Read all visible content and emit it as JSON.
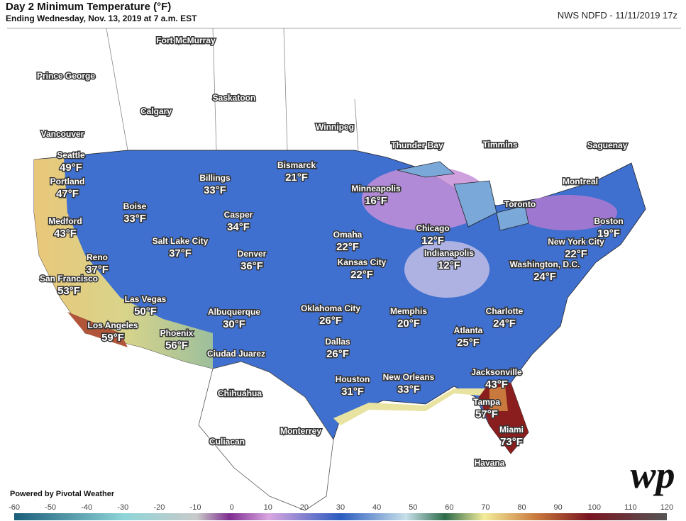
{
  "header": {
    "title": "Day 2 Minimum Temperature (°F)",
    "subtitle": "Ending Wednesday, Nov. 13, 2019 at 7 a.m. EST",
    "source": "NWS NDFD - 11/11/2019 17z"
  },
  "cities": [
    {
      "name": "Seattle",
      "temp": "49°F"
    },
    {
      "name": "Portland",
      "temp": "47°F"
    },
    {
      "name": "Boise",
      "temp": "33°F"
    },
    {
      "name": "Medford",
      "temp": "43°F"
    },
    {
      "name": "Billings",
      "temp": "33°F"
    },
    {
      "name": "Bismarck",
      "temp": "21°F"
    },
    {
      "name": "Casper",
      "temp": "34°F"
    },
    {
      "name": "Minneapolis",
      "temp": "16°F"
    },
    {
      "name": "Reno",
      "temp": "37°F"
    },
    {
      "name": "Salt Lake City",
      "temp": "37°F"
    },
    {
      "name": "Denver",
      "temp": "36°F"
    },
    {
      "name": "Omaha",
      "temp": "22°F"
    },
    {
      "name": "Chicago",
      "temp": "12°F"
    },
    {
      "name": "Indianapolis",
      "temp": "12°F"
    },
    {
      "name": "Kansas City",
      "temp": "22°F"
    },
    {
      "name": "San Francisco",
      "temp": "53°F"
    },
    {
      "name": "Las Vegas",
      "temp": "50°F"
    },
    {
      "name": "Boston",
      "temp": "19°F"
    },
    {
      "name": "New York City",
      "temp": "22°F"
    },
    {
      "name": "Washington, D.C.",
      "temp": "24°F"
    },
    {
      "name": "Oklahoma City",
      "temp": "26°F"
    },
    {
      "name": "Memphis",
      "temp": "20°F"
    },
    {
      "name": "Charlotte",
      "temp": "24°F"
    },
    {
      "name": "Albuquerque",
      "temp": "30°F"
    },
    {
      "name": "Los Angeles",
      "temp": "59°F"
    },
    {
      "name": "Phoenix",
      "temp": "56°F"
    },
    {
      "name": "Atlanta",
      "temp": "25°F"
    },
    {
      "name": "Dallas",
      "temp": "26°F"
    },
    {
      "name": "Houston",
      "temp": "31°F"
    },
    {
      "name": "New Orleans",
      "temp": "33°F"
    },
    {
      "name": "Jacksonville",
      "temp": "43°F"
    },
    {
      "name": "Tampa",
      "temp": "57°F"
    },
    {
      "name": "Miami",
      "temp": "73°F"
    }
  ],
  "places": [
    "Fort McMurray",
    "Prince George",
    "Saskatoon",
    "Calgary",
    "Vancouver",
    "Winnipeg",
    "Thunder Bay",
    "Timmins",
    "Saguenay",
    "Montreal",
    "Toronto",
    "Ciudad Juarez",
    "Chihuahua",
    "Monterrey",
    "Culiacan",
    "Havana"
  ],
  "footer": {
    "credit": "Powered by Pivotal Weather",
    "logo": "wp"
  },
  "colorbar": {
    "lim": [
      -60,
      120
    ],
    "ticks": [
      -60,
      -50,
      -40,
      -30,
      -20,
      -10,
      0,
      10,
      20,
      30,
      40,
      50,
      60,
      70,
      80,
      90,
      100,
      110,
      120
    ]
  }
}
